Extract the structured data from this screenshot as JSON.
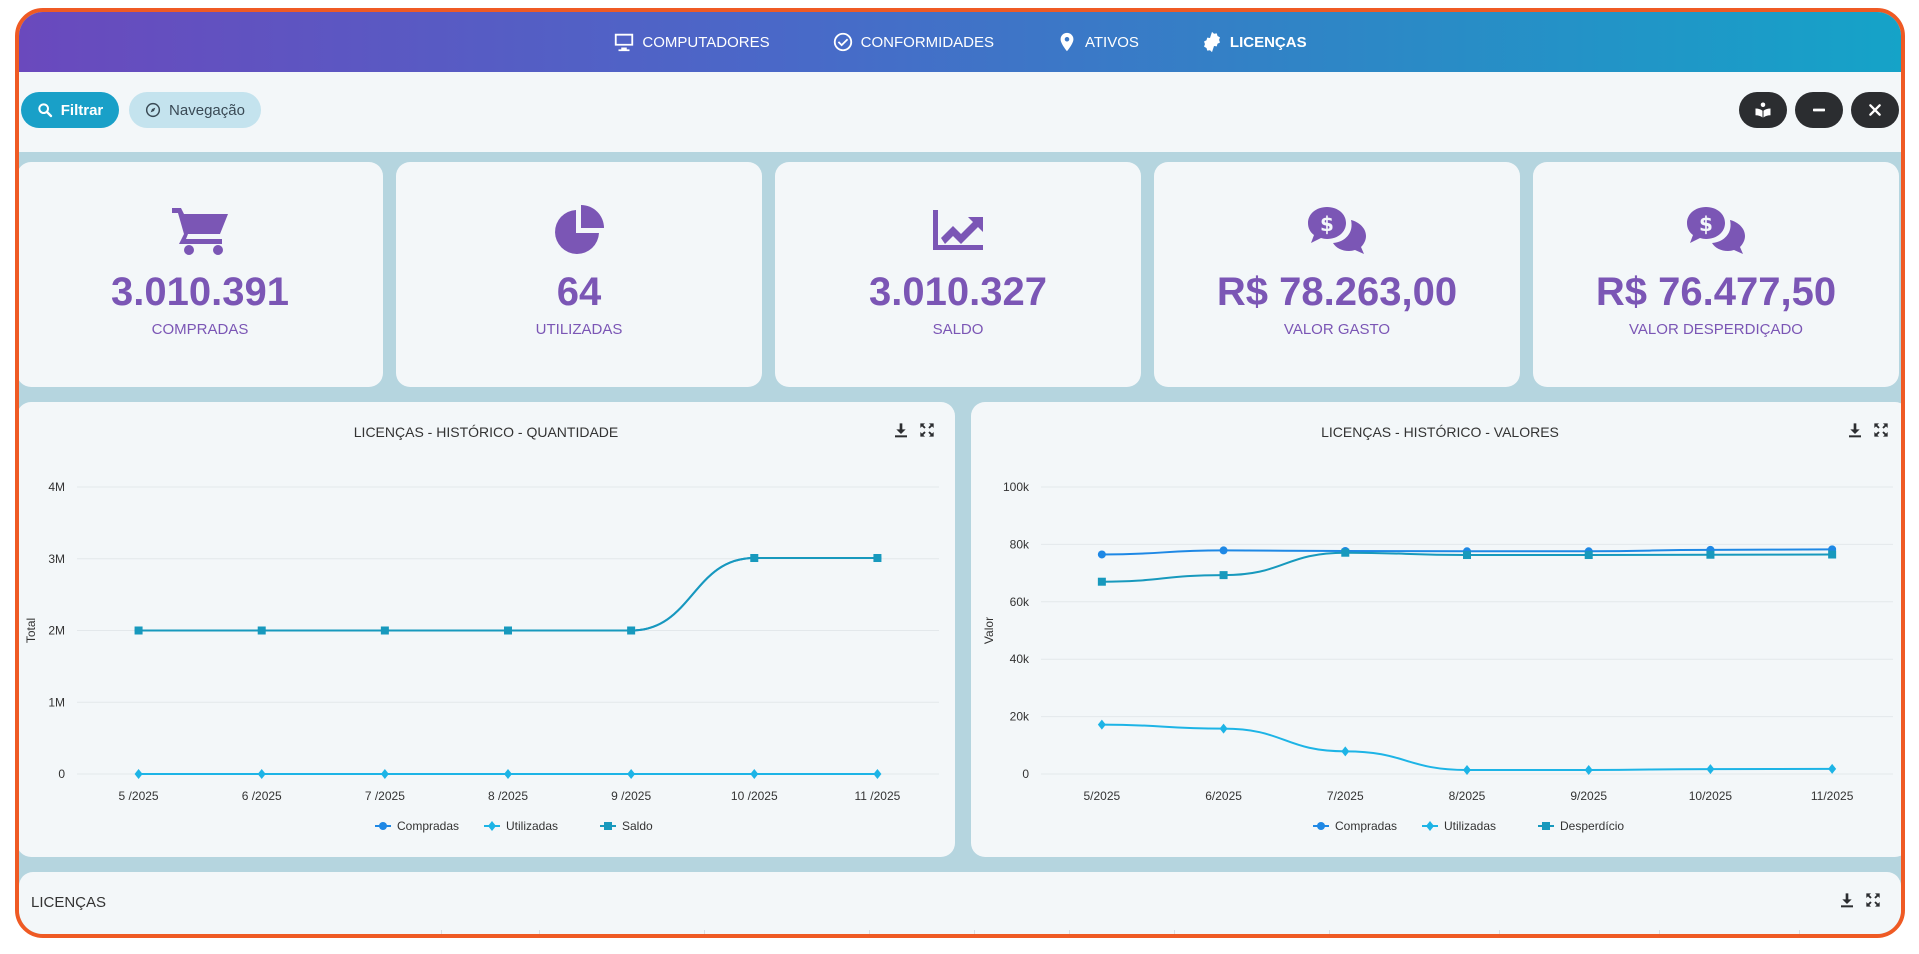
{
  "nav": {
    "items": [
      {
        "label": "COMPUTADORES",
        "icon": "monitor-icon"
      },
      {
        "label": "CONFORMIDADES",
        "icon": "check-circle-icon"
      },
      {
        "label": "ATIVOS",
        "icon": "map-pin-icon"
      },
      {
        "label": "LICENÇAS",
        "icon": "badge-certificate-icon",
        "active": true
      }
    ]
  },
  "toolbar": {
    "filter_label": "Filtrar",
    "navigation_label": "Navegação"
  },
  "kpis": [
    {
      "value": "3.010.391",
      "label": "COMPRADAS",
      "icon": "cart-icon"
    },
    {
      "value": "64",
      "label": "UTILIZADAS",
      "icon": "pie-chart-icon"
    },
    {
      "value": "3.010.327",
      "label": "SALDO",
      "icon": "trend-chart-icon"
    },
    {
      "value": "R$ 78.263,00",
      "label": "VALOR GASTO",
      "icon": "money-chat-icon"
    },
    {
      "value": "R$ 76.477,50",
      "label": "VALOR DESPERDIÇADO",
      "icon": "money-chat-icon"
    }
  ],
  "colors": {
    "accent": "#7b56b5",
    "series_blue": "#1e88e5",
    "series_cyan": "#1db4e6",
    "series_teal": "#1799bd",
    "frame_border": "#ef5a24"
  },
  "chart_data": [
    {
      "type": "line",
      "title": "LICENÇAS - HISTÓRICO - QUANTIDADE",
      "xlabel": "",
      "ylabel": "Total",
      "categories": [
        "5 /2025",
        "6 /2025",
        "7 /2025",
        "8 /2025",
        "9 /2025",
        "10 /2025",
        "11 /2025"
      ],
      "ylim": [
        0,
        4000000
      ],
      "yticks": [
        "0",
        "1M",
        "2M",
        "3M",
        "4M"
      ],
      "series": [
        {
          "name": "Compradas",
          "marker": "circle",
          "values": [
            2000000,
            2000000,
            2000000,
            2000000,
            2000000,
            3010391,
            3010391
          ]
        },
        {
          "name": "Utilizadas",
          "marker": "diamond",
          "values": [
            60,
            60,
            62,
            62,
            63,
            64,
            64
          ]
        },
        {
          "name": "Saldo",
          "marker": "square",
          "values": [
            1999940,
            1999940,
            1999938,
            1999938,
            1999937,
            3010327,
            3010327
          ]
        }
      ],
      "grid": true,
      "legend": "bottom"
    },
    {
      "type": "line",
      "title": "LICENÇAS - HISTÓRICO - VALORES",
      "xlabel": "",
      "ylabel": "Valor",
      "categories": [
        "5/2025",
        "6/2025",
        "7/2025",
        "8/2025",
        "9/2025",
        "10/2025",
        "11/2025"
      ],
      "ylim": [
        0,
        100000
      ],
      "yticks": [
        "0",
        "20k",
        "40k",
        "60k",
        "80k",
        "100k"
      ],
      "series": [
        {
          "name": "Compradas",
          "marker": "circle",
          "values": [
            76500,
            77900,
            77700,
            77600,
            77600,
            78100,
            78263
          ]
        },
        {
          "name": "Utilizadas",
          "marker": "diamond",
          "values": [
            17200,
            15800,
            7900,
            1400,
            1400,
            1700,
            1800
          ]
        },
        {
          "name": "Desperdício",
          "marker": "square",
          "values": [
            67000,
            69300,
            77100,
            76300,
            76300,
            76400,
            76477.5
          ]
        }
      ],
      "grid": true,
      "legend": "bottom"
    }
  ],
  "bottom": {
    "title": "LICENÇAS"
  }
}
